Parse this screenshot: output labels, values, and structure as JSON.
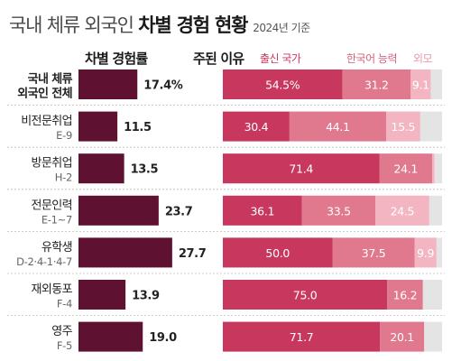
{
  "title": {
    "light": "국내 체류 외국인 ",
    "bold": "차별 경험 현황",
    "note": "2024년 기준"
  },
  "headers": {
    "rate": "차별 경험률",
    "reasons": "주된 이유"
  },
  "colors": {
    "rate_bar": "#5e1130",
    "origin": "#c8385e",
    "korean": "#e0788e",
    "appearance": "#f3b5c1",
    "other": "#e4e4e4",
    "divider": "#bdbdbd"
  },
  "chart_data": {
    "type": "bar",
    "categories": [
      {
        "name": "국내 체류\n외국인 전체",
        "code": ""
      },
      {
        "name": "비전문취업",
        "code": "E-9"
      },
      {
        "name": "방문취업",
        "code": "H-2"
      },
      {
        "name": "전문인력",
        "code": "E-1~7"
      },
      {
        "name": "유학생",
        "code": "D-2·4-1·4-7"
      },
      {
        "name": "재외동포",
        "code": "F-4"
      },
      {
        "name": "영주",
        "code": "F-5"
      }
    ],
    "rate": {
      "name": "차별 경험률",
      "values": [
        17.4,
        11.5,
        13.5,
        23.7,
        27.7,
        13.9,
        19.0
      ],
      "labels": [
        "17.4%",
        "11.5",
        "13.5",
        "23.7",
        "27.7",
        "13.9",
        "19.0"
      ]
    },
    "reasons": {
      "series": [
        {
          "name": "출신 국가",
          "values": [
            54.5,
            30.4,
            71.4,
            36.1,
            50.0,
            75.0,
            71.7
          ],
          "labels": [
            "54.5%",
            "30.4",
            "71.4",
            "36.1",
            "50.0",
            "75.0",
            "71.7"
          ]
        },
        {
          "name": "한국어 능력",
          "values": [
            31.2,
            44.1,
            24.1,
            33.5,
            37.5,
            16.2,
            20.1
          ],
          "labels": [
            "31.2",
            "44.1",
            "24.1",
            "33.5",
            "37.5",
            "16.2",
            "20.1"
          ]
        },
        {
          "name": "외모",
          "values": [
            9.1,
            15.5,
            1.0,
            24.5,
            9.9,
            0,
            0
          ],
          "labels": [
            "9.1",
            "15.5",
            "",
            "24.5",
            "9.9",
            "",
            ""
          ]
        }
      ],
      "max": 100
    }
  }
}
